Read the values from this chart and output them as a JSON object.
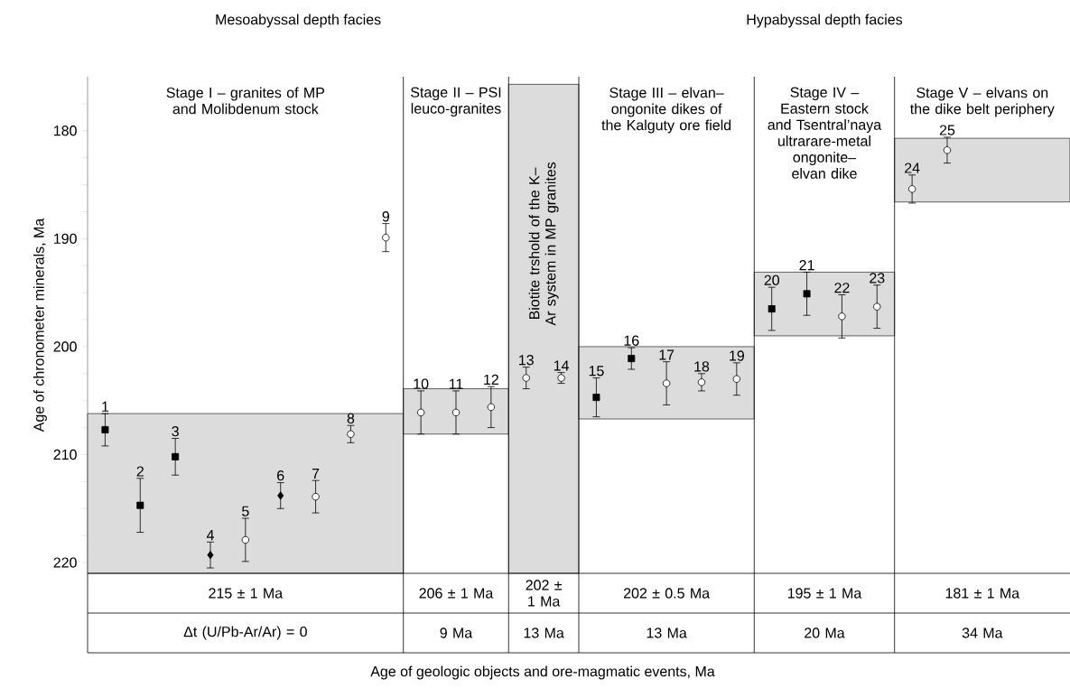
{
  "chart_data": {
    "type": "scatter",
    "ylabel": "Age of chronometer minerals, Ma",
    "categories": [
      "1",
      "2",
      "3",
      "4",
      "5",
      "6",
      "7",
      "8",
      "9",
      "10",
      "11",
      "12",
      "13",
      "14",
      "15",
      "16",
      "17",
      "18",
      "19",
      "20",
      "21",
      "22",
      "23",
      "24",
      "25"
    ],
    "ylim": [
      221,
      175
    ],
    "yticks": [
      {
        "value": 177.5,
        "label": null
      },
      180,
      {
        "value": 182.5,
        "label": null
      },
      {
        "value": 185,
        "label": null
      },
      {
        "value": 187.5,
        "label": null
      },
      190,
      {
        "value": 192.5,
        "label": null
      },
      {
        "value": 195,
        "label": null
      },
      {
        "value": 197.5,
        "label": null
      },
      200,
      {
        "value": 202.5,
        "label": null
      },
      {
        "value": 205,
        "label": null
      },
      {
        "value": 207.5,
        "label": null
      },
      210,
      {
        "value": 212.5,
        "label": null
      },
      {
        "value": 215,
        "label": null
      },
      {
        "value": 217.5,
        "label": null
      },
      220
    ],
    "series": [
      {
        "marker": "square",
        "color": "#000000",
        "values": [
          207.7,
          214.7,
          210.2,
          null,
          null,
          null,
          null,
          null,
          null,
          null,
          null,
          null,
          null,
          null,
          204.7,
          201.1,
          null,
          null,
          null,
          196.5,
          195.1,
          null,
          null,
          null,
          null
        ],
        "errors": [
          1.5,
          2.5,
          1.7,
          null,
          null,
          null,
          null,
          null,
          null,
          null,
          null,
          null,
          null,
          null,
          1.8,
          1,
          null,
          null,
          null,
          2,
          2,
          null,
          null,
          null,
          null
        ]
      },
      {
        "marker": "diamond",
        "color": "#000000",
        "values": [
          null,
          null,
          null,
          219.3,
          null,
          213.8,
          null,
          null,
          null,
          null,
          null,
          null,
          null,
          null,
          null,
          null,
          null,
          null,
          null,
          null,
          null,
          null,
          null,
          null,
          null
        ],
        "errors": [
          null,
          null,
          null,
          1.2,
          null,
          1.2,
          null,
          null,
          null,
          null,
          null,
          null,
          null,
          null,
          null,
          null,
          null,
          null,
          null,
          null,
          null,
          null,
          null,
          null,
          null
        ]
      },
      {
        "marker": "circle",
        "color": "#000000",
        "values": [
          null,
          null,
          null,
          null,
          217.9,
          null,
          213.9,
          208.1,
          189.9,
          206.1,
          206.1,
          205.6,
          202.9,
          202.9,
          null,
          null,
          203.4,
          203.3,
          203,
          null,
          null,
          197.2,
          196.3,
          185.4,
          181.8
        ],
        "errors": [
          null,
          null,
          null,
          null,
          2,
          null,
          1.5,
          0.8,
          1.3,
          2,
          2,
          1.9,
          1,
          0.5,
          null,
          null,
          2,
          0.8,
          1.5,
          null,
          null,
          2,
          2,
          1.3,
          1.2
        ]
      }
    ],
    "bands": [
      {
        "axis": "y",
        "from": 206.2,
        "to": 221,
        "color": "#dcdcdc"
      },
      {
        "axis": "y",
        "from": 203.9,
        "to": 208.1,
        "color": "#dcdcdc"
      },
      {
        "axis": "y",
        "from": 175.7,
        "to": 221,
        "color": "#dcdcdc",
        "label": "Biotite trshold of the K–Ar system in MP granites"
      },
      {
        "axis": "y",
        "from": 200,
        "to": 206.7,
        "color": "#dcdcdc"
      },
      {
        "axis": "y",
        "from": 193.1,
        "to": 199,
        "color": "#dcdcdc"
      },
      {
        "axis": "y",
        "from": 180.7,
        "to": 186.6,
        "color": "#dcdcdc"
      }
    ],
    "annotations": [
      "Mesoabyssal depth facies",
      "Hypabyssal depth facies",
      "Stage I – granites of MP and Molibdenum stock",
      "Stage II – PSI leuco-granites",
      "Stage III – elvan–ongonite dikes of the Kalguty ore field",
      "Stage IV – Eastern stock and Tsentral’naya ultrarare-metal ongonite–elvan dike",
      "Stage V – elvans on the dike belt periphery",
      "215 ± 1 Ma",
      "206 ± 1 Ma",
      "202 ± 1 Ma",
      "202 ± 0.5 Ma",
      "195 ± 1 Ma",
      "181 ± 1 Ma",
      "Δt (U/Pb-Ar/Ar) = 0",
      "9 Ma",
      "13 Ma",
      "13 Ma",
      "20 Ma",
      "34 Ma",
      "Age of geologic objects and ore-magmatic events, Ma"
    ]
  }
}
